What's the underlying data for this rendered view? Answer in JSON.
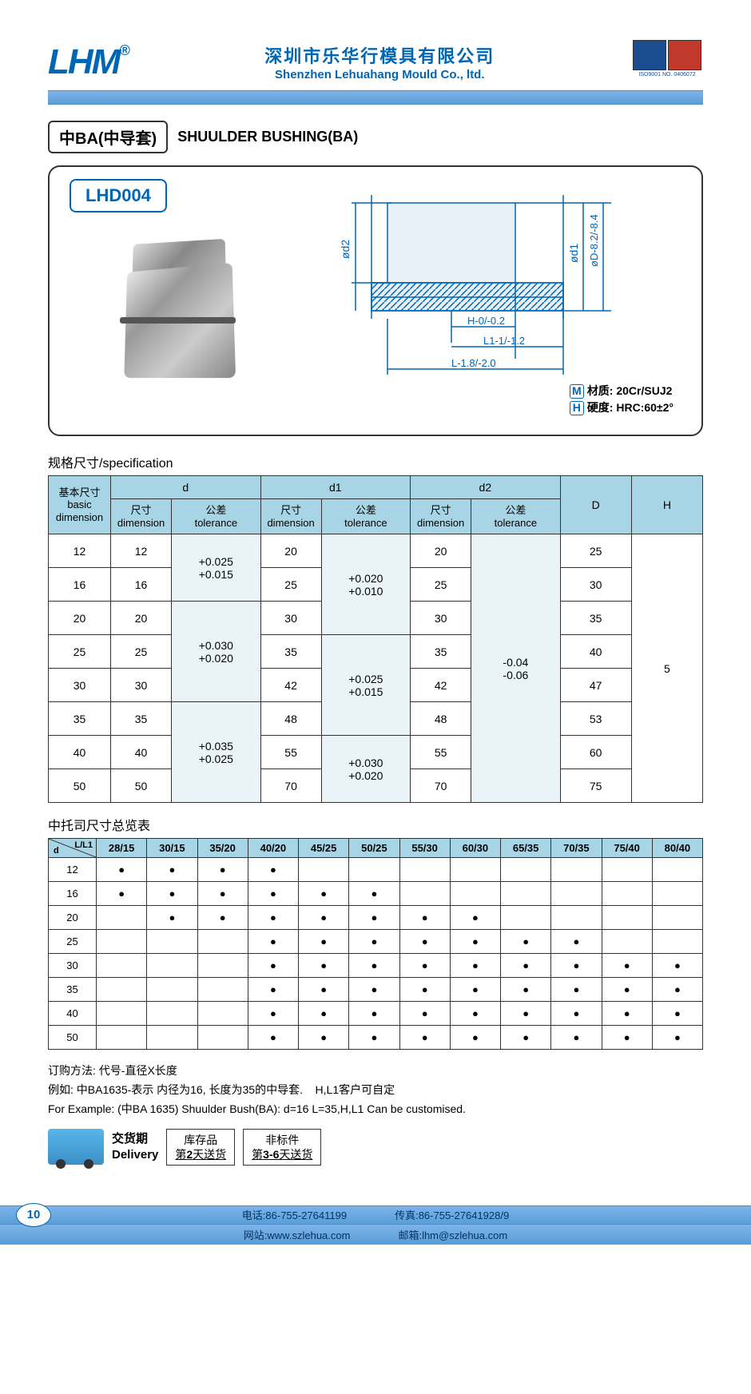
{
  "header": {
    "logo": "LHM",
    "company_cn": "深圳市乐华行模具有限公司",
    "company_en": "Shenzhen Lehuahang Mould Co., ltd.",
    "cert_text": "ISO9001 NO. 0406072"
  },
  "title": {
    "cn": "中BA(中导套)",
    "en": "SHUULDER BUSHING(BA)"
  },
  "part_code": "LHD004",
  "diagram": {
    "labels": {
      "d2": "ød2",
      "d1": "ød1",
      "D": "øD-8.2/-8.4",
      "H": "H-0/-0.2",
      "L1": "L1-1/-1.2",
      "L": "L-1.8/-2.0"
    },
    "material_label": "M",
    "material": "材质: 20Cr/SUJ2",
    "hardness_label": "H",
    "hardness": "硬度: HRC:60±2°"
  },
  "spec": {
    "title": "规格尺寸/specification",
    "headers": {
      "basic": "基本尺寸\nbasic\ndimension",
      "d": "d",
      "d1": "d1",
      "d2": "d2",
      "D": "D",
      "H": "H",
      "dim": "尺寸\ndimension",
      "tol": "公差\ntolerance"
    },
    "rows": [
      {
        "basic": "12",
        "d": "12",
        "d1": "20",
        "d2": "20",
        "D": "25"
      },
      {
        "basic": "16",
        "d": "16",
        "d1": "25",
        "d2": "25",
        "D": "30"
      },
      {
        "basic": "20",
        "d": "20",
        "d1": "30",
        "d2": "30",
        "D": "35"
      },
      {
        "basic": "25",
        "d": "25",
        "d1": "35",
        "d2": "35",
        "D": "40"
      },
      {
        "basic": "30",
        "d": "30",
        "d1": "42",
        "d2": "42",
        "D": "47"
      },
      {
        "basic": "35",
        "d": "35",
        "d1": "48",
        "d2": "48",
        "D": "53"
      },
      {
        "basic": "40",
        "d": "40",
        "d1": "55",
        "d2": "55",
        "D": "60"
      },
      {
        "basic": "50",
        "d": "50",
        "d1": "70",
        "d2": "70",
        "D": "75"
      }
    ],
    "d_tol": [
      "+0.025\n+0.015",
      "+0.030\n+0.020",
      "+0.035\n+0.025"
    ],
    "d1_tol": [
      "+0.020\n+0.010",
      "+0.025\n+0.015",
      "+0.030\n+0.020"
    ],
    "d2_tol": "-0.04\n-0.06",
    "H": "5"
  },
  "overview": {
    "title": "中托司尺寸总览表",
    "corner": {
      "top": "L/L1",
      "bot": "d"
    },
    "cols": [
      "28/15",
      "30/15",
      "35/20",
      "40/20",
      "45/25",
      "50/25",
      "55/30",
      "60/30",
      "65/35",
      "70/35",
      "75/40",
      "80/40"
    ],
    "rows": [
      "12",
      "16",
      "20",
      "25",
      "30",
      "35",
      "40",
      "50"
    ],
    "dots": [
      [
        1,
        1,
        1,
        1,
        0,
        0,
        0,
        0,
        0,
        0,
        0,
        0
      ],
      [
        1,
        1,
        1,
        1,
        1,
        1,
        0,
        0,
        0,
        0,
        0,
        0
      ],
      [
        0,
        1,
        1,
        1,
        1,
        1,
        1,
        1,
        0,
        0,
        0,
        0
      ],
      [
        0,
        0,
        0,
        1,
        1,
        1,
        1,
        1,
        1,
        1,
        0,
        0
      ],
      [
        0,
        0,
        0,
        1,
        1,
        1,
        1,
        1,
        1,
        1,
        1,
        1
      ],
      [
        0,
        0,
        0,
        1,
        1,
        1,
        1,
        1,
        1,
        1,
        1,
        1
      ],
      [
        0,
        0,
        0,
        1,
        1,
        1,
        1,
        1,
        1,
        1,
        1,
        1
      ],
      [
        0,
        0,
        0,
        1,
        1,
        1,
        1,
        1,
        1,
        1,
        1,
        1
      ]
    ]
  },
  "order": {
    "l1": "订购方法: 代号-直径X长度",
    "l2": "例如: 中BA1635-表示  内径为16, 长度为35的中导套.",
    "l2b": "H,L1客户可自定",
    "l3": "For Example: (中BA  1635) Shuulder Bush(BA): d=16 L=35,H,L1 Can be customised."
  },
  "delivery": {
    "label_cn": "交货期",
    "label_en": "Delivery",
    "stock_cn": "库存品",
    "stock_en": "第2天送货",
    "nonstd_cn": "非标件",
    "nonstd_en": "第3-6天送货"
  },
  "footer": {
    "page": "10",
    "tel": "电话:86-755-27641199",
    "fax": "传真:86-755-27641928/9",
    "web": "网站:www.szlehua.com",
    "mail": "邮箱:lhm@szlehua.com"
  }
}
